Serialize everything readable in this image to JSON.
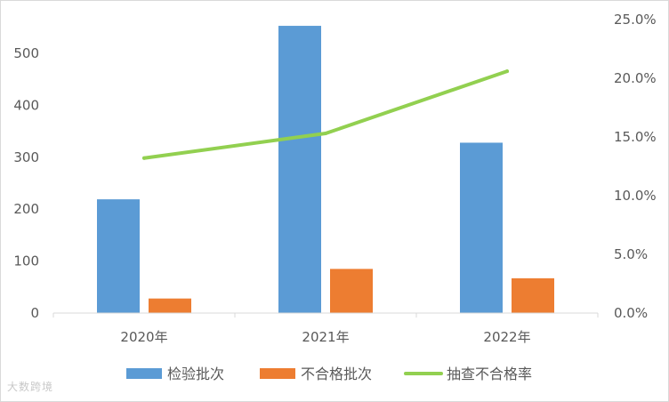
{
  "chart_data": {
    "type": "bar",
    "categories": [
      "2020年",
      "2021年",
      "2022年"
    ],
    "series": [
      {
        "name": "检验批次",
        "type": "bar",
        "axis": "left",
        "color": "#5b9bd5",
        "values": [
          219,
          553,
          328
        ]
      },
      {
        "name": "不合格批次",
        "type": "bar",
        "axis": "left",
        "color": "#ed7d31",
        "values": [
          28,
          85,
          67
        ]
      },
      {
        "name": "抽查不合格率",
        "type": "line",
        "axis": "right",
        "color": "#92d050",
        "values": [
          0.132,
          0.153,
          0.206
        ]
      }
    ],
    "left_axis": {
      "ylim": [
        0,
        550
      ],
      "ticks": [
        0,
        100,
        200,
        300,
        400,
        500
      ],
      "tick_labels": [
        "0",
        "100",
        "200",
        "300",
        "400",
        "500"
      ]
    },
    "right_axis": {
      "ylim": [
        0,
        0.25
      ],
      "ticks": [
        0,
        0.05,
        0.1,
        0.15,
        0.2,
        0.25
      ],
      "tick_labels": [
        "0.0%",
        "5.0%",
        "10.0%",
        "15.0%",
        "20.0%",
        "25.0%"
      ]
    },
    "legend_position": "bottom",
    "grid": false
  },
  "watermark": "大数跨境"
}
